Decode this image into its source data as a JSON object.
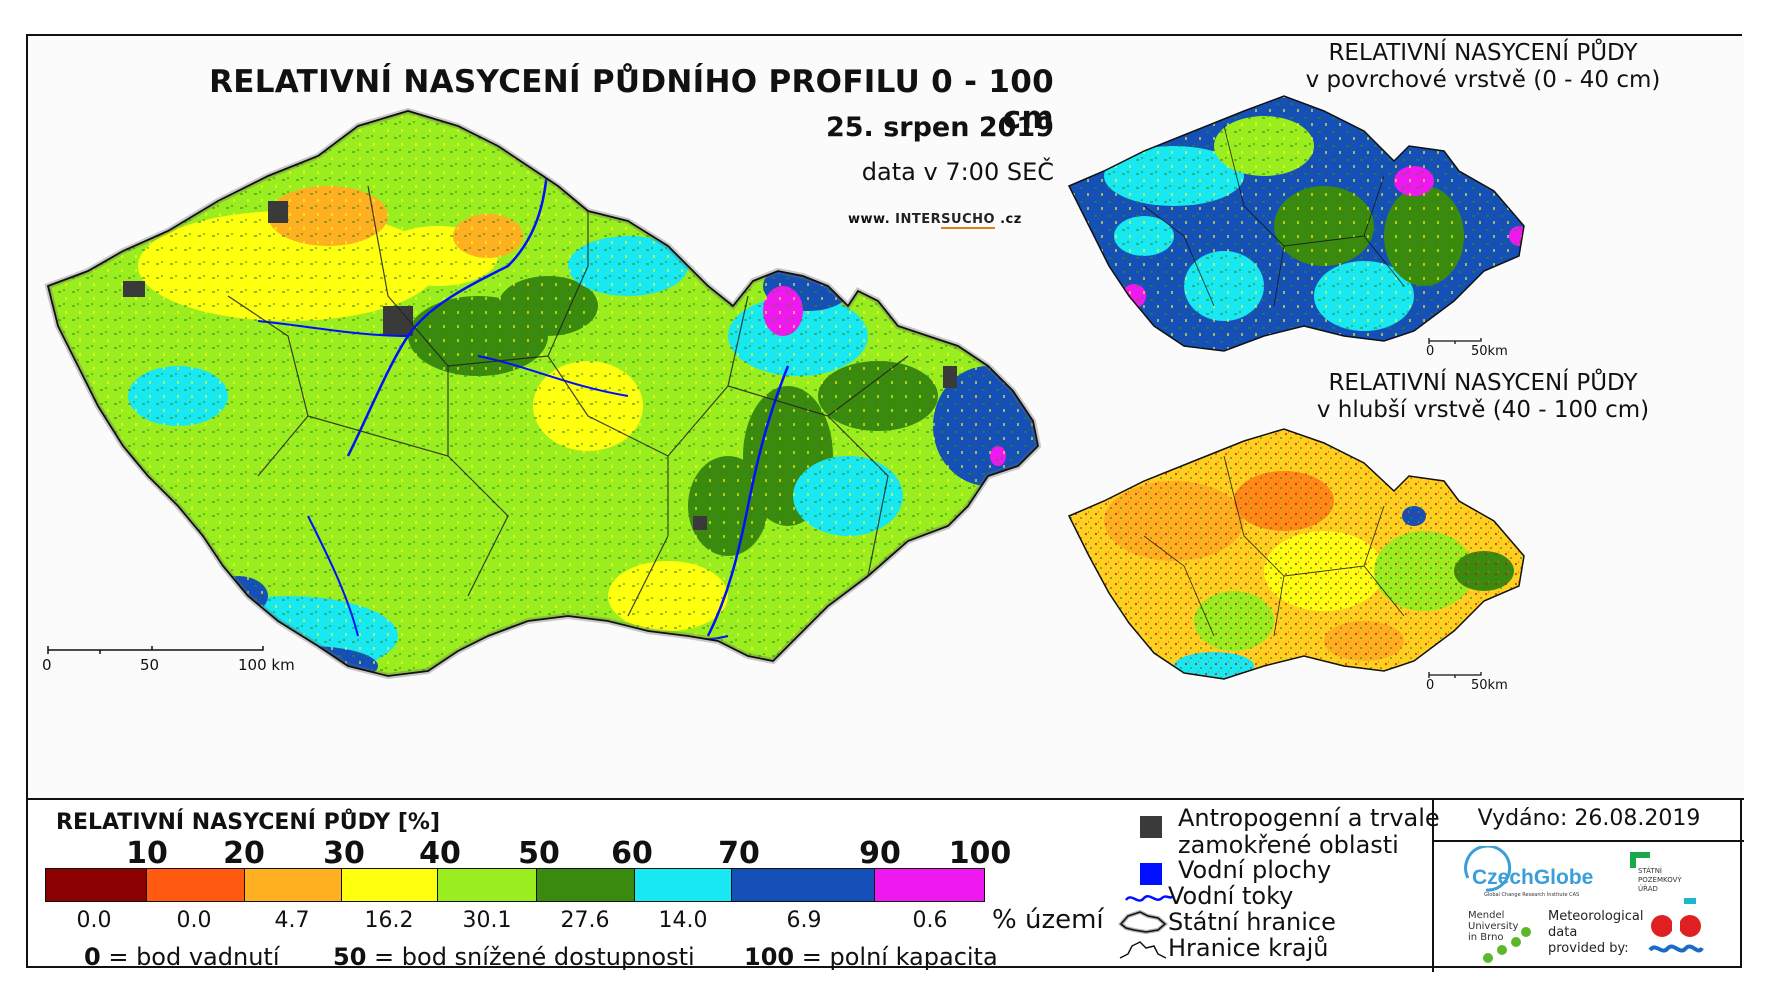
{
  "main_map": {
    "title": "RELATIVNÍ NASYCENÍ PŮDNÍHO PROFILU 0 - 100 cm",
    "date": "25. srpen 2019",
    "time": "data v 7:00 SEČ",
    "website": {
      "prefix": "www. ",
      "brand_a": "INTER",
      "brand_b": "SUCHO",
      "suffix": " .cz"
    },
    "scale_labels": [
      "0",
      "50",
      "100 km"
    ]
  },
  "inset_top": {
    "title_line1": "RELATIVNÍ NASYCENÍ PŮDY",
    "title_line2": "v povrchové vrstvě (0 - 40 cm)",
    "scale_labels": [
      "0",
      "50km"
    ]
  },
  "inset_bottom": {
    "title_line1": "RELATIVNÍ NASYCENÍ PŮDY",
    "title_line2": "v hlubší vrstvě (40 - 100 cm)",
    "scale_labels": [
      "0",
      "50km"
    ]
  },
  "legend": {
    "title": "RELATIVNÍ NASYCENÍ PŮDY [%]",
    "thresholds": [
      "10",
      "20",
      "30",
      "40",
      "50",
      "60",
      "70",
      "90",
      "100"
    ],
    "classes": [
      {
        "color": "#8b0000",
        "percent": "0.0"
      },
      {
        "color": "#ff5a10",
        "percent": "0.0"
      },
      {
        "color": "#ffb020",
        "percent": "4.7"
      },
      {
        "color": "#ffff10",
        "percent": "16.2"
      },
      {
        "color": "#9aee20",
        "percent": "30.1"
      },
      {
        "color": "#3a8a10",
        "percent": "27.6"
      },
      {
        "color": "#18e8f2",
        "percent": "14.0"
      },
      {
        "color": "#1550b8",
        "percent": "6.9"
      },
      {
        "color": "#f018f0",
        "percent": "0.6"
      }
    ],
    "unit_label": "% území",
    "key_0_num": "0",
    "key_0_text": " = bod vadnutí",
    "key_50_num": "50",
    "key_50_text": " = bod snížené dostupnosti",
    "key_100_num": "100",
    "key_100_text": " = polní kapacita"
  },
  "symbols": {
    "antropogenni_line1": "Antropogenní a trvale",
    "antropogenni_line2": "zamokřené oblasti",
    "antropogenni_color": "#3a3a3a",
    "vodni_plochy": "Vodní plochy",
    "vodni_plochy_color": "#0010ff",
    "vodni_toky": "Vodní toky",
    "vodni_toky_color": "#0010ff",
    "statni_hranice": "Státní hranice",
    "hranice_kraju": "Hranice krajů"
  },
  "issued": "Vydáno: 26.08.2019",
  "logos": {
    "czechglobe": "CzechGlobe",
    "czechglobe_sub": "Global Change Research Institute CAS",
    "spu_line1": "STÁTNÍ",
    "spu_line2": "POZEMKOVÝ",
    "spu_line3": "ÚŘAD",
    "mendel_line1": "Mendel",
    "mendel_line2": "University",
    "mendel_line3": "in Brno",
    "meteo_line1": "Meteorological",
    "meteo_line2": "data",
    "meteo_line3": "provided by:"
  }
}
